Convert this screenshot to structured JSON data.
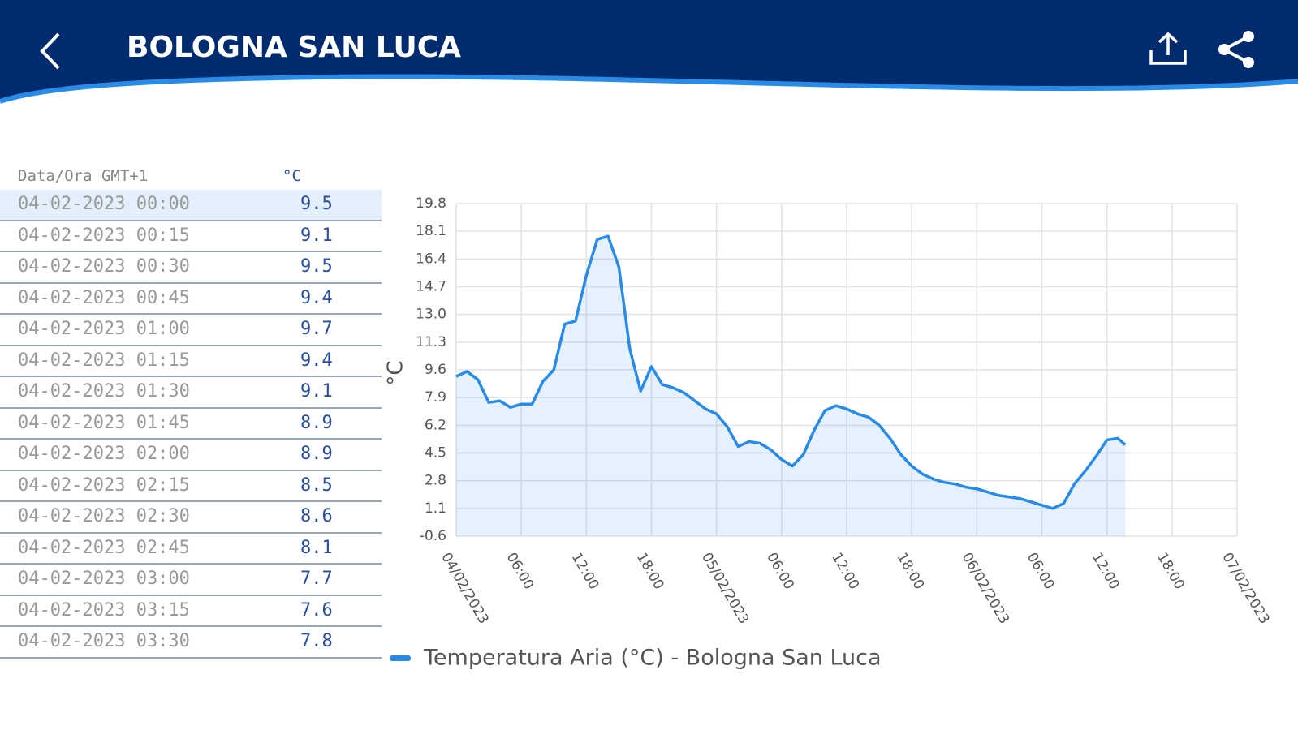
{
  "header": {
    "title": "BOLOGNA SAN LUCA"
  },
  "table": {
    "columns": [
      "Data/Ora GMT+1",
      "°C"
    ],
    "rows": [
      [
        "04-02-2023 00:00",
        9.5
      ],
      [
        "04-02-2023 00:15",
        9.1
      ],
      [
        "04-02-2023 00:30",
        9.5
      ],
      [
        "04-02-2023 00:45",
        9.4
      ],
      [
        "04-02-2023 01:00",
        9.7
      ],
      [
        "04-02-2023 01:15",
        9.4
      ],
      [
        "04-02-2023 01:30",
        9.1
      ],
      [
        "04-02-2023 01:45",
        8.9
      ],
      [
        "04-02-2023 02:00",
        8.9
      ],
      [
        "04-02-2023 02:15",
        8.5
      ],
      [
        "04-02-2023 02:30",
        8.6
      ],
      [
        "04-02-2023 02:45",
        8.1
      ],
      [
        "04-02-2023 03:00",
        7.7
      ],
      [
        "04-02-2023 03:15",
        7.6
      ],
      [
        "04-02-2023 03:30",
        7.8
      ]
    ]
  },
  "chart_data": {
    "type": "line",
    "y_label": "°C",
    "grid": true,
    "xlim": [
      0,
      72
    ],
    "ylim": [
      -0.6,
      19.8
    ],
    "xticks": [
      {
        "value": 0,
        "label": "04/02/2023"
      },
      {
        "value": 6,
        "label": "06:00"
      },
      {
        "value": 12,
        "label": "12:00"
      },
      {
        "value": 18,
        "label": "18:00"
      },
      {
        "value": 24,
        "label": "05/02/2023"
      },
      {
        "value": 30,
        "label": "06:00"
      },
      {
        "value": 36,
        "label": "12:00"
      },
      {
        "value": 42,
        "label": "18:00"
      },
      {
        "value": 48,
        "label": "06/02/2023"
      },
      {
        "value": 54,
        "label": "06:00"
      },
      {
        "value": 60,
        "label": "12:00"
      },
      {
        "value": 66,
        "label": "18:00"
      },
      {
        "value": 72,
        "label": "07/02/2023"
      }
    ],
    "yticks": [
      19.8,
      18.1,
      16.4,
      14.7,
      {
        "value": 13,
        "label": "13.0"
      },
      11.3,
      9.6,
      7.9,
      6.2,
      4.5,
      2.8,
      1.1,
      -0.6
    ],
    "x": [
      0,
      1,
      2,
      3,
      4,
      5,
      6,
      7,
      8,
      9,
      10,
      11,
      12,
      13,
      14,
      15,
      16,
      17,
      18,
      19,
      20,
      21,
      22,
      23,
      24,
      25,
      26,
      27,
      28,
      29,
      30,
      31,
      32,
      33,
      34,
      35,
      36,
      37,
      38,
      39,
      40,
      41,
      42,
      43,
      44,
      45,
      46,
      47,
      48,
      49,
      50,
      51,
      52,
      53,
      54,
      55,
      56,
      57,
      58,
      59,
      60,
      61,
      61.7
    ],
    "series": [
      {
        "name": "Temperatura Aria (°C) - Bologna San Luca",
        "color": "#2a8be6",
        "values": [
          9.2,
          9.5,
          9.0,
          7.6,
          7.7,
          7.3,
          7.5,
          7.5,
          8.9,
          9.6,
          12.4,
          12.6,
          15.4,
          17.6,
          17.8,
          15.9,
          10.9,
          8.3,
          9.8,
          8.7,
          8.5,
          8.2,
          7.7,
          7.2,
          6.9,
          6.1,
          4.9,
          5.2,
          5.1,
          4.7,
          4.1,
          3.7,
          4.4,
          5.9,
          7.1,
          7.4,
          7.2,
          6.9,
          6.7,
          6.2,
          5.4,
          4.4,
          3.7,
          3.2,
          2.9,
          2.7,
          2.6,
          2.4,
          2.3,
          2.1,
          1.9,
          1.8,
          1.7,
          1.5,
          1.3,
          1.1,
          1.4,
          2.6,
          3.4,
          4.3,
          5.3,
          5.4,
          5.0
        ]
      }
    ]
  }
}
